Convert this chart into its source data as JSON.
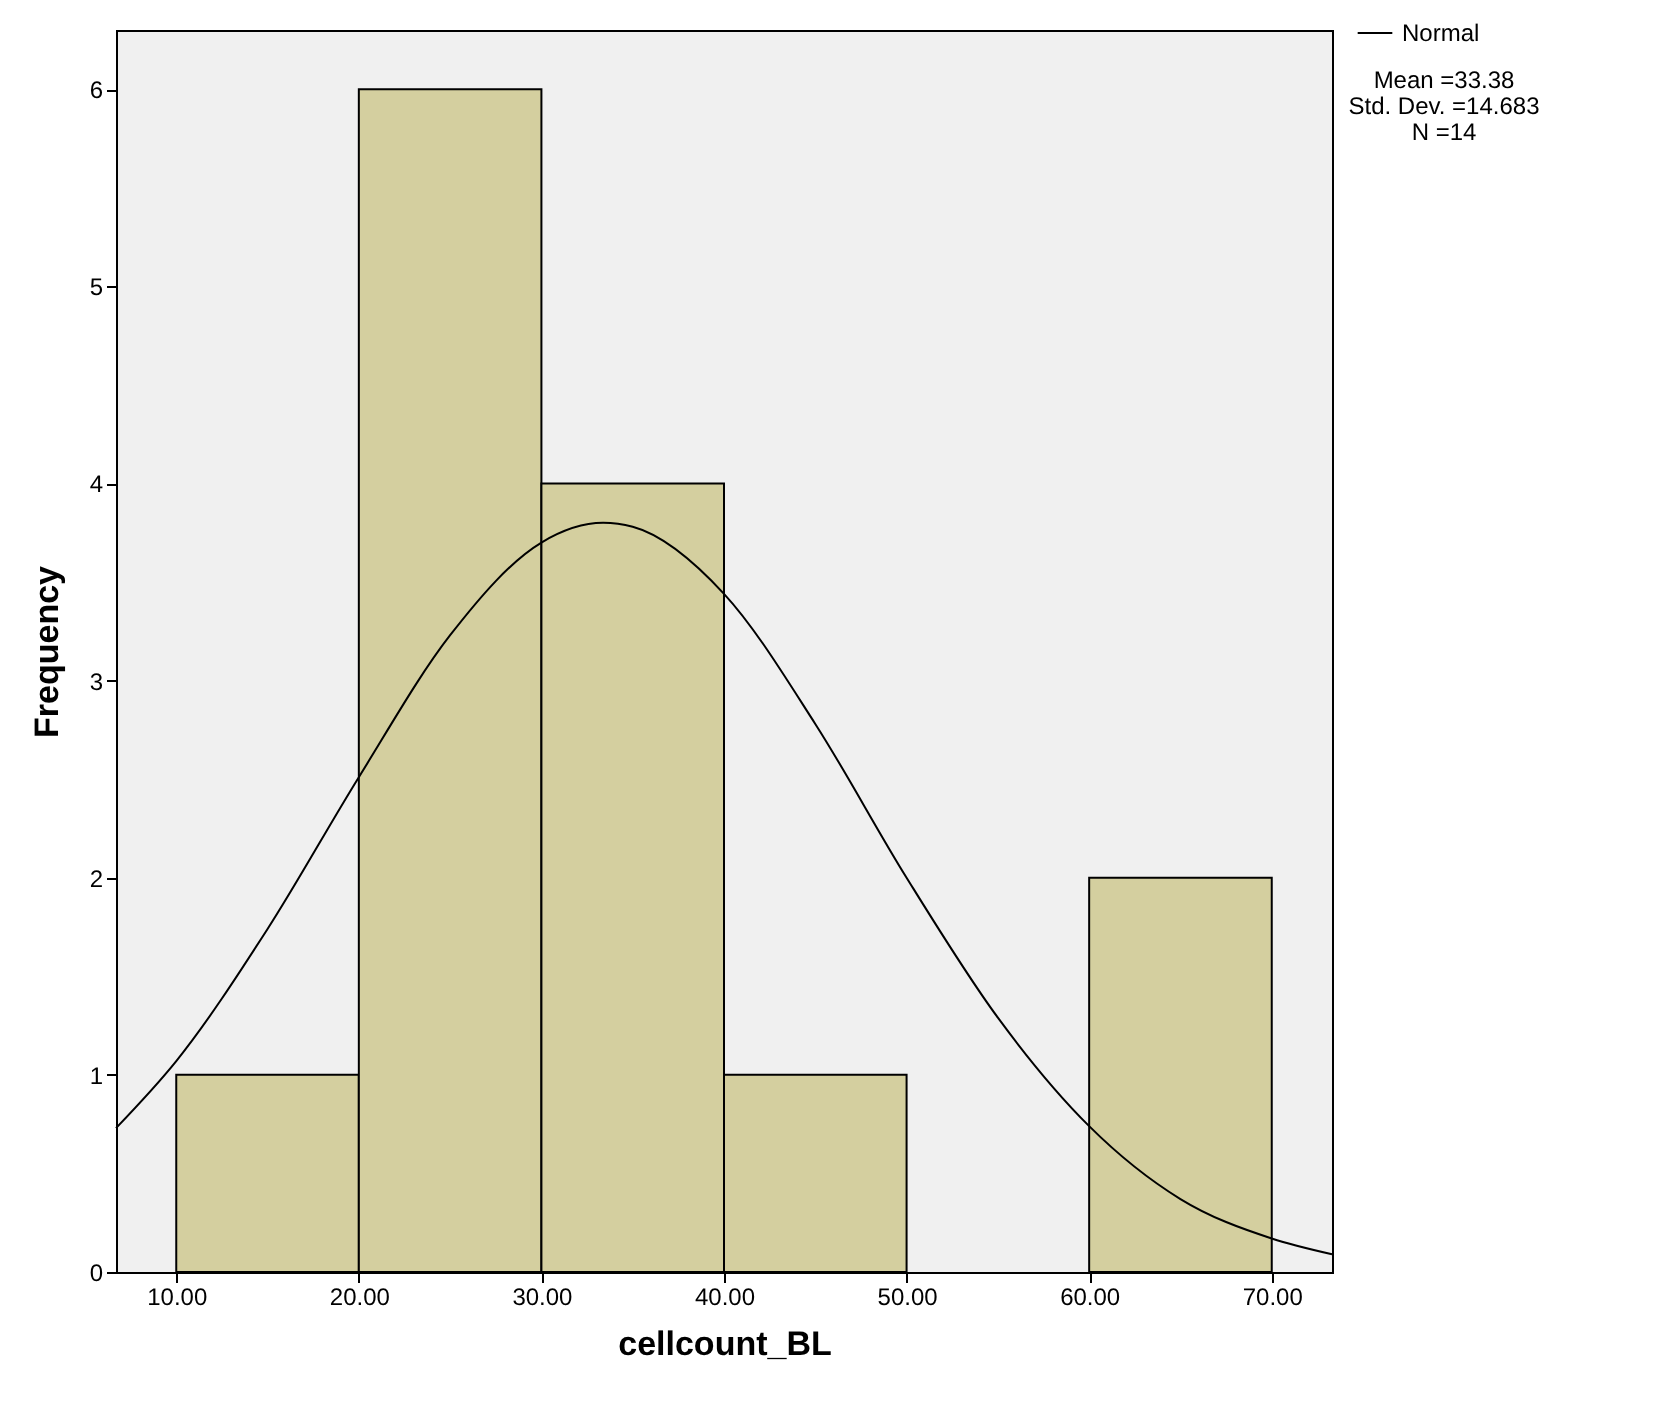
{
  "chart_data": {
    "type": "histogram",
    "xlabel": "cellcount_BL",
    "ylabel": "Frequency",
    "bins": [
      10,
      20,
      30,
      40,
      50,
      60,
      70
    ],
    "values": [
      1,
      6,
      4,
      1,
      0,
      2
    ],
    "color": "#d4cf9f",
    "series": [
      {
        "name": "Normal",
        "type": "line",
        "color": "#000000",
        "x": [
          6.7,
          10,
          15,
          20,
          25,
          30,
          33.38,
          35,
          40,
          45,
          50,
          55,
          60,
          65,
          70,
          73.3
        ],
        "values": [
          0.73,
          1.07,
          1.74,
          2.51,
          3.23,
          3.7,
          3.8,
          3.78,
          3.44,
          2.78,
          2.0,
          1.29,
          0.74,
          0.37,
          0.17,
          0.09
        ]
      }
    ],
    "xlim": [
      6.7,
      73.3
    ],
    "xticks": [
      {
        "value": 10,
        "label": "10.00"
      },
      {
        "value": 20,
        "label": "20.00"
      },
      {
        "value": 30,
        "label": "30.00"
      },
      {
        "value": 40,
        "label": "40.00"
      },
      {
        "value": 50,
        "label": "50.00"
      },
      {
        "value": 60,
        "label": "60.00"
      },
      {
        "value": 70,
        "label": "70.00"
      }
    ],
    "ylim": [
      0,
      6.3
    ],
    "yticks": [
      0,
      1,
      2,
      3,
      4,
      5,
      6
    ],
    "annotations": [
      "Mean =33.38",
      "Std. Dev. =14.683",
      "N =14"
    ],
    "legend": "top right"
  }
}
